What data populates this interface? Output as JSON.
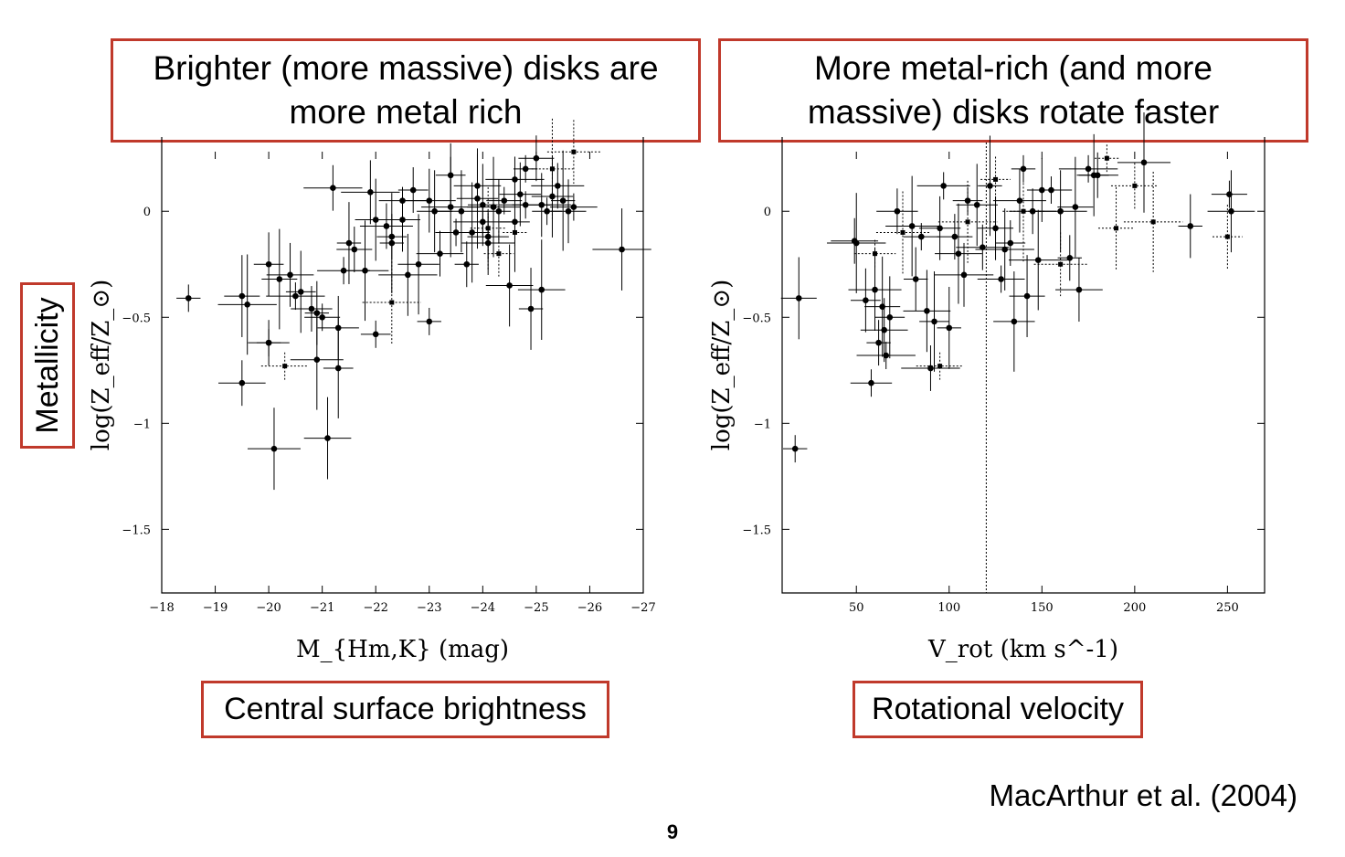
{
  "headlines": {
    "left_line1": "Brighter (more massive) disks are",
    "left_line2": "more metal rich",
    "right_line1": "More metal-rich (and more",
    "right_line2": "massive) disks rotate faster"
  },
  "captions": {
    "left": "Central surface brightness",
    "right": "Rotational velocity",
    "y_axis": "Metallicity"
  },
  "credit": "MacArthur et al. (2004)",
  "page_number": "9",
  "colors": {
    "box_border": "#c0392b",
    "marker": "#000000"
  },
  "chart_data": [
    {
      "type": "scatter",
      "title": "",
      "xlabel": "M_{Hm,K} (mag)",
      "ylabel": "log(Z_eff/Z_⊙)",
      "xlim": [
        -18,
        -27
      ],
      "ylim": [
        -1.8,
        0.35
      ],
      "x_ticks": [
        -18,
        -19,
        -20,
        -21,
        -22,
        -23,
        -24,
        -25,
        -26,
        -27
      ],
      "x_tick_labels": [
        "−18",
        "−19",
        "−20",
        "−21",
        "−22",
        "−23",
        "−24",
        "−25",
        "−26",
        "−27"
      ],
      "y_ticks": [
        0,
        -0.5,
        -1,
        -1.5
      ],
      "y_tick_labels": [
        "0",
        "−0.5",
        "−1",
        "−1.5"
      ],
      "grid": false,
      "series": [
        {
          "marker": "circle",
          "x": [
            -18.5,
            -19.5,
            -19.5,
            -19.6,
            -20.0,
            -20.0,
            -20.1,
            -20.0,
            -20.2,
            -20.4,
            -20.5,
            -20.6,
            -20.8,
            -20.9,
            -20.9,
            -21.0,
            -21.1,
            -21.2,
            -21.3,
            -21.3,
            -21.4,
            -21.5,
            -21.6,
            -21.8,
            -21.9,
            -22.0,
            -22.0,
            -22.2,
            -22.3,
            -22.5,
            -22.5,
            -22.6,
            -22.7,
            -22.8,
            -23.0,
            -23.0,
            -23.1,
            -23.2,
            -23.4,
            -23.4,
            -23.5,
            -23.6,
            -23.7,
            -23.8,
            -23.9,
            -24.0,
            -24.0,
            -24.1,
            -24.2,
            -24.3,
            -24.4,
            -24.5,
            -24.6,
            -24.6,
            -24.7,
            -24.8,
            -24.9,
            -25.0,
            -25.1,
            -25.1,
            -25.2,
            -25.3,
            -25.4,
            -25.5,
            -25.6,
            -25.7,
            -26.6,
            -22.3,
            -23.9,
            -24.1,
            -24.8
          ],
          "y": [
            -0.41,
            -0.4,
            -0.81,
            -0.44,
            -0.25,
            -0.62,
            -1.12,
            -0.62,
            -0.32,
            -0.3,
            -0.4,
            -0.38,
            -0.46,
            -0.7,
            -0.48,
            -0.5,
            -1.07,
            0.11,
            -0.74,
            -0.55,
            -0.28,
            -0.15,
            -0.18,
            -0.28,
            0.09,
            -0.58,
            -0.04,
            -0.07,
            -0.15,
            -0.04,
            0.05,
            -0.3,
            0.1,
            -0.25,
            0.05,
            -0.52,
            0.0,
            -0.2,
            0.02,
            0.17,
            -0.1,
            0.0,
            -0.25,
            -0.1,
            0.12,
            -0.05,
            0.03,
            -0.12,
            0.02,
            0.0,
            0.05,
            -0.35,
            0.15,
            -0.05,
            0.08,
            0.03,
            -0.46,
            0.25,
            -0.37,
            0.03,
            0.0,
            0.07,
            0.12,
            0.05,
            0.0,
            0.02,
            -0.18,
            -0.12,
            0.06,
            -0.15,
            0.2
          ]
        },
        {
          "marker": "square-dotted",
          "x": [
            -20.3,
            -22.3,
            -24.3,
            -25.3,
            -25.7,
            -24.6,
            -24.1
          ],
          "y": [
            -0.73,
            -0.43,
            -0.2,
            0.2,
            0.28,
            -0.1,
            -0.08
          ]
        }
      ]
    },
    {
      "type": "scatter",
      "title": "",
      "xlabel": "V_rot (km s^-1)",
      "ylabel": "log(Z_eff/Z_⊙)",
      "xlim": [
        10,
        270
      ],
      "ylim": [
        -1.8,
        0.35
      ],
      "x_ticks": [
        50,
        100,
        150,
        200,
        250
      ],
      "x_tick_labels": [
        "50",
        "100",
        "150",
        "200",
        "250"
      ],
      "y_ticks": [
        0,
        -0.5,
        -1,
        -1.5
      ],
      "y_tick_labels": [
        "0",
        "−0.5",
        "−1",
        "−1.5"
      ],
      "vline_x": 120,
      "grid": false,
      "series": [
        {
          "marker": "circle",
          "x": [
            17,
            19,
            49,
            50,
            55,
            58,
            60,
            62,
            64,
            65,
            66,
            68,
            72,
            80,
            82,
            85,
            88,
            90,
            92,
            95,
            97,
            100,
            103,
            105,
            108,
            110,
            115,
            118,
            122,
            125,
            128,
            130,
            133,
            135,
            138,
            140,
            142,
            145,
            148,
            150,
            155,
            160,
            165,
            168,
            170,
            175,
            178,
            180,
            205,
            230,
            251,
            252
          ],
          "y": [
            -1.12,
            -0.41,
            -0.14,
            -0.15,
            -0.42,
            -0.81,
            -0.37,
            -0.62,
            -0.45,
            -0.56,
            -0.68,
            -0.5,
            0.0,
            -0.07,
            -0.32,
            -0.12,
            -0.47,
            -0.74,
            -0.52,
            -0.08,
            0.12,
            -0.55,
            -0.12,
            -0.2,
            -0.3,
            0.05,
            0.03,
            -0.17,
            0.12,
            -0.08,
            -0.32,
            -0.18,
            -0.15,
            -0.52,
            0.05,
            0.2,
            -0.4,
            0.0,
            -0.23,
            0.1,
            0.1,
            0.0,
            -0.22,
            0.02,
            -0.37,
            0.2,
            0.17,
            0.17,
            0.23,
            -0.07,
            0.08,
            0.0
          ]
        },
        {
          "marker": "square-dotted",
          "x": [
            95,
            110,
            125,
            140,
            160,
            185,
            190,
            200,
            210,
            250,
            60,
            75
          ],
          "y": [
            -0.73,
            -0.05,
            0.15,
            0.0,
            -0.25,
            0.25,
            -0.08,
            0.12,
            -0.05,
            -0.12,
            -0.2,
            -0.1
          ]
        }
      ]
    }
  ]
}
